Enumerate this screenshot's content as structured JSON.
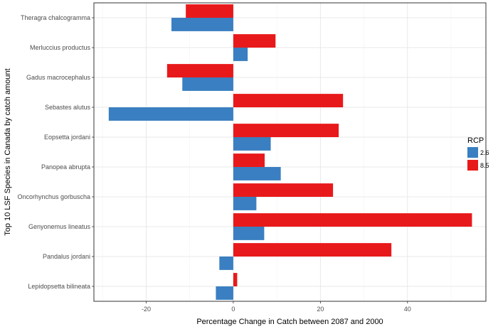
{
  "chart_data": {
    "type": "bar",
    "orientation": "horizontal",
    "xlabel": "Percentage Change in Catch between 2087 and 2000",
    "ylabel": "Top 10 LSF Species in Canada by catch amount",
    "xlim": [
      -32,
      58
    ],
    "x_ticks": [
      -20,
      0,
      20,
      40
    ],
    "x_tick_labels": [
      "-20",
      "0",
      "20",
      "40"
    ],
    "grid": true,
    "legend_position": "right",
    "legend_title": "RCP",
    "categories": [
      "Theragra chalcogramma",
      "Merluccius productus",
      "Gadus macrocephalus",
      "Sebastes alutus",
      "Eopsetta jordani",
      "Panopea abrupta",
      "Oncorhynchus gorbuscha",
      "Genyonemus lineatus",
      "Pandalus jordani",
      "Lepidopsetta bilineata"
    ],
    "series": [
      {
        "name": "2.6",
        "color": "#3a7fc1",
        "values": [
          -14.2,
          3.3,
          -11.7,
          -28.6,
          8.6,
          10.9,
          5.3,
          7.1,
          -3.2,
          -4.0
        ]
      },
      {
        "name": "8.5",
        "color": "#e8191b",
        "values": [
          -10.9,
          9.7,
          -15.2,
          25.2,
          24.2,
          7.2,
          22.9,
          54.8,
          36.3,
          0.9
        ]
      }
    ]
  }
}
